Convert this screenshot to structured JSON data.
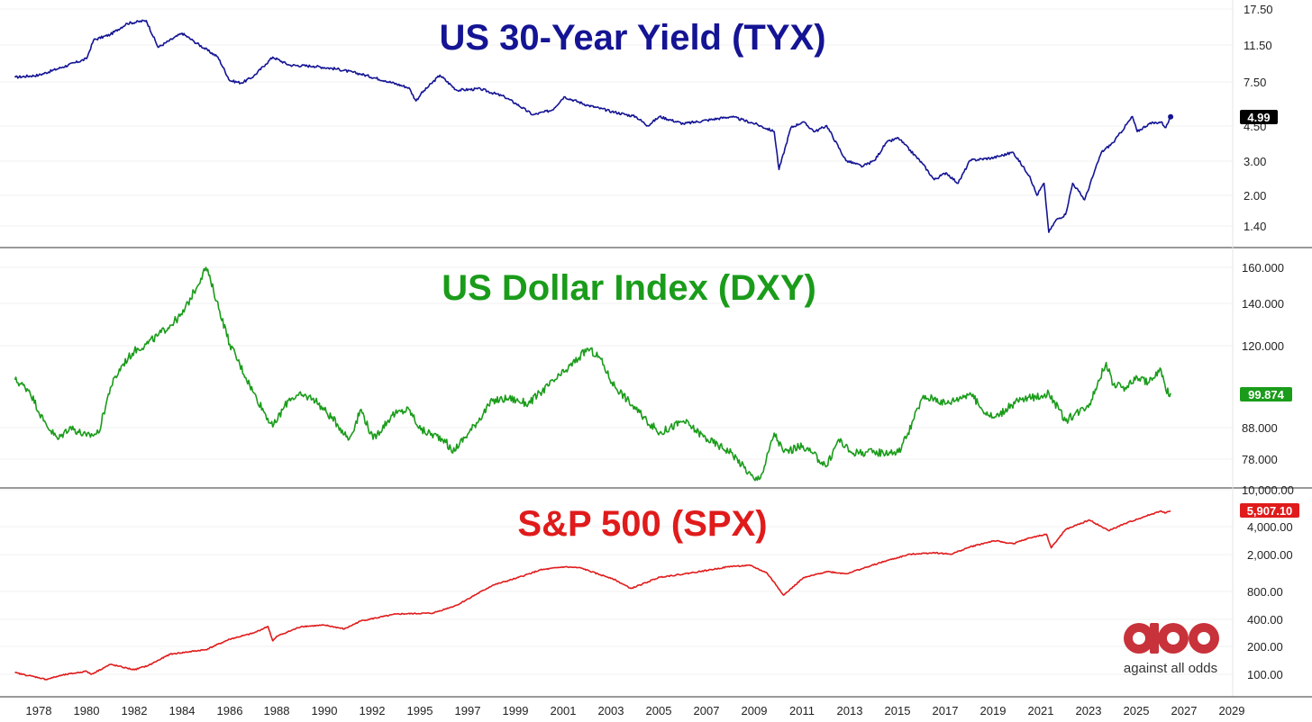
{
  "chart_data": [
    {
      "type": "line",
      "title": "US 30-Year Yield (TYX)",
      "color": "#141494",
      "y_scale": "log",
      "y_ticks": [
        "17.50",
        "11.50",
        "7.50",
        "4.50",
        "3.00",
        "2.00",
        "1.40"
      ],
      "last_value_label": "4.99",
      "last_label_bg": "#000000",
      "series": [
        {
          "x": [
            1977.0,
            1978.0,
            1979.0,
            1980.0,
            1980.3,
            1981.0,
            1981.7,
            1982.5,
            1983.0,
            1984.0,
            1984.5,
            1985.5,
            1986.0,
            1986.5,
            1987.0,
            1987.5,
            1987.8,
            1988.5,
            1989.5,
            1990.5,
            1991.5,
            1992.5,
            1993.5,
            1993.8,
            1994.0,
            1994.8,
            1995.5,
            1996.5,
            1997.5,
            1998.0,
            1998.7,
            1999.5,
            2000.0,
            2001.0,
            2002.0,
            2003.0,
            2003.5,
            2004.0,
            2005.0,
            2006.0,
            2007.0,
            2008.0,
            2008.8,
            2009.0,
            2009.5,
            2010.0,
            2010.5,
            2011.0,
            2011.8,
            2012.5,
            2013.0,
            2013.5,
            2014.0,
            2015.0,
            2015.5,
            2016.0,
            2016.5,
            2017.0,
            2018.0,
            2018.8,
            2019.5,
            2019.8,
            2020.1,
            2020.3,
            2020.6,
            2021.0,
            2021.3,
            2021.8,
            2022.5,
            2023.0,
            2023.8,
            2024.0,
            2024.5,
            2025.0,
            2025.2,
            2025.4
          ],
          "values": [
            7.9,
            8.1,
            8.9,
            9.8,
            12.2,
            13.0,
            14.8,
            15.3,
            11.2,
            13.2,
            12.0,
            10.0,
            7.6,
            7.4,
            8.0,
            9.2,
            10.0,
            9.1,
            9.0,
            8.7,
            8.2,
            7.6,
            7.0,
            6.0,
            6.5,
            8.1,
            6.8,
            6.9,
            6.3,
            5.8,
            5.1,
            5.4,
            6.3,
            5.7,
            5.3,
            5.0,
            4.5,
            5.0,
            4.6,
            4.8,
            5.0,
            4.6,
            4.2,
            2.7,
            4.4,
            4.7,
            4.2,
            4.5,
            3.0,
            2.8,
            3.0,
            3.7,
            3.9,
            2.9,
            2.4,
            2.6,
            2.3,
            3.0,
            3.1,
            3.3,
            2.5,
            2.0,
            2.3,
            1.3,
            1.5,
            1.6,
            2.3,
            1.9,
            3.3,
            3.7,
            5.0,
            4.2,
            4.6,
            4.7,
            4.4,
            4.99
          ]
        }
      ]
    },
    {
      "type": "line",
      "title": "US Dollar Index (DXY)",
      "color": "#1a9c1a",
      "y_scale": "log",
      "y_ticks": [
        "160.000",
        "140.000",
        "120.000",
        "88.000",
        "78.000"
      ],
      "last_value_label": "99.874",
      "last_label_bg": "#1a9c1a",
      "series": [
        {
          "x": [
            1977.0,
            1977.6,
            1978.2,
            1978.8,
            1979.3,
            1980.0,
            1980.5,
            1981.0,
            1981.5,
            1982.0,
            1982.5,
            1983.0,
            1984.0,
            1984.5,
            1985.0,
            1985.2,
            1986.0,
            1987.0,
            1987.8,
            1988.5,
            1989.0,
            1989.5,
            1990.5,
            1991.0,
            1991.5,
            1992.0,
            1992.8,
            1993.5,
            1994.0,
            1995.0,
            1995.3,
            1996.0,
            1997.0,
            1997.7,
            1998.5,
            1999.0,
            2000.0,
            2001.0,
            2001.5,
            2002.0,
            2003.0,
            2004.0,
            2005.0,
            2006.0,
            2007.0,
            2008.0,
            2008.3,
            2008.8,
            2009.2,
            2010.0,
            2011.0,
            2011.5,
            2012.0,
            2013.0,
            2014.0,
            2014.4,
            2015.0,
            2015.5,
            2016.0,
            2017.0,
            2017.5,
            2018.0,
            2019.0,
            2020.0,
            2020.3,
            2021.0,
            2022.0,
            2022.7,
            2023.0,
            2023.5,
            2024.0,
            2024.5,
            2025.0,
            2025.2,
            2025.4
          ],
          "values": [
            105,
            101,
            90,
            84,
            88,
            85,
            86,
            102,
            111,
            117,
            120,
            124,
            134,
            146,
            160,
            152,
            120,
            100,
            88,
            98,
            99,
            98,
            89,
            84,
            94,
            84,
            92,
            94,
            87,
            84,
            80,
            86,
            97,
            98,
            96,
            100,
            108,
            118,
            114,
            104,
            94,
            86,
            90,
            84,
            80,
            72,
            74,
            86,
            80,
            82,
            76,
            84,
            80,
            80,
            80,
            86,
            98,
            98,
            96,
            100,
            94,
            91,
            97,
            99,
            100,
            90,
            96,
            112,
            103,
            102,
            106,
            104,
            109,
            101,
            99.874
          ]
        }
      ]
    },
    {
      "type": "line",
      "title": "S&P 500 (SPX)",
      "color": "#e01b1b",
      "y_scale": "log",
      "y_ticks": [
        "10,000.00",
        "4,000.00",
        "2,000.00",
        "800.00",
        "400.00",
        "200.00",
        "100.00"
      ],
      "last_value_label": "5,907.10",
      "last_label_bg": "#e01b1b",
      "series": [
        {
          "x": [
            1977.0,
            1978.0,
            1978.3,
            1979.0,
            1980.0,
            1980.2,
            1981.0,
            1982.0,
            1982.6,
            1983.5,
            1985.0,
            1986.0,
            1987.0,
            1987.6,
            1987.8,
            1988.0,
            1989.0,
            1990.0,
            1990.8,
            1991.5,
            1993.0,
            1994.5,
            1995.5,
            1997.0,
            1998.0,
            1999.0,
            2000.0,
            2000.7,
            2001.5,
            2002.0,
            2002.8,
            2003.5,
            2004.0,
            2005.0,
            2006.0,
            2007.0,
            2007.8,
            2008.5,
            2009.2,
            2010.0,
            2011.0,
            2011.8,
            2012.5,
            2013.5,
            2014.5,
            2015.5,
            2016.2,
            2017.0,
            2018.0,
            2018.8,
            2019.5,
            2020.2,
            2020.4,
            2021.0,
            2022.0,
            2022.8,
            2023.5,
            2024.0,
            2025.0,
            2025.2,
            2025.4
          ],
          "values": [
            104,
            92,
            88,
            98,
            108,
            100,
            128,
            112,
            125,
            165,
            185,
            240,
            280,
            330,
            230,
            260,
            330,
            340,
            310,
            380,
            450,
            460,
            560,
            920,
            1100,
            1350,
            1460,
            1420,
            1200,
            1100,
            850,
            1000,
            1130,
            1220,
            1340,
            1480,
            1510,
            1250,
            720,
            1100,
            1300,
            1230,
            1400,
            1700,
            2000,
            2080,
            2000,
            2400,
            2800,
            2600,
            3000,
            3300,
            2350,
            3700,
            4700,
            3600,
            4300,
            4800,
            5900,
            5600,
            5907.1
          ]
        }
      ]
    }
  ],
  "x_axis": {
    "ticks": [
      "1978",
      "1980",
      "1982",
      "1984",
      "1986",
      "1988",
      "1990",
      "1992",
      "1995",
      "1997",
      "1999",
      "2001",
      "2003",
      "2005",
      "2007",
      "2009",
      "2011",
      "2013",
      "2015",
      "2017",
      "2019",
      "2021",
      "2023",
      "2025",
      "2027",
      "2029"
    ]
  },
  "logo": {
    "text": "against all odds",
    "color": "#c8323a"
  },
  "colors": {
    "background": "#ffffff",
    "grid": "#f2f2f2",
    "separator": "#333333"
  }
}
